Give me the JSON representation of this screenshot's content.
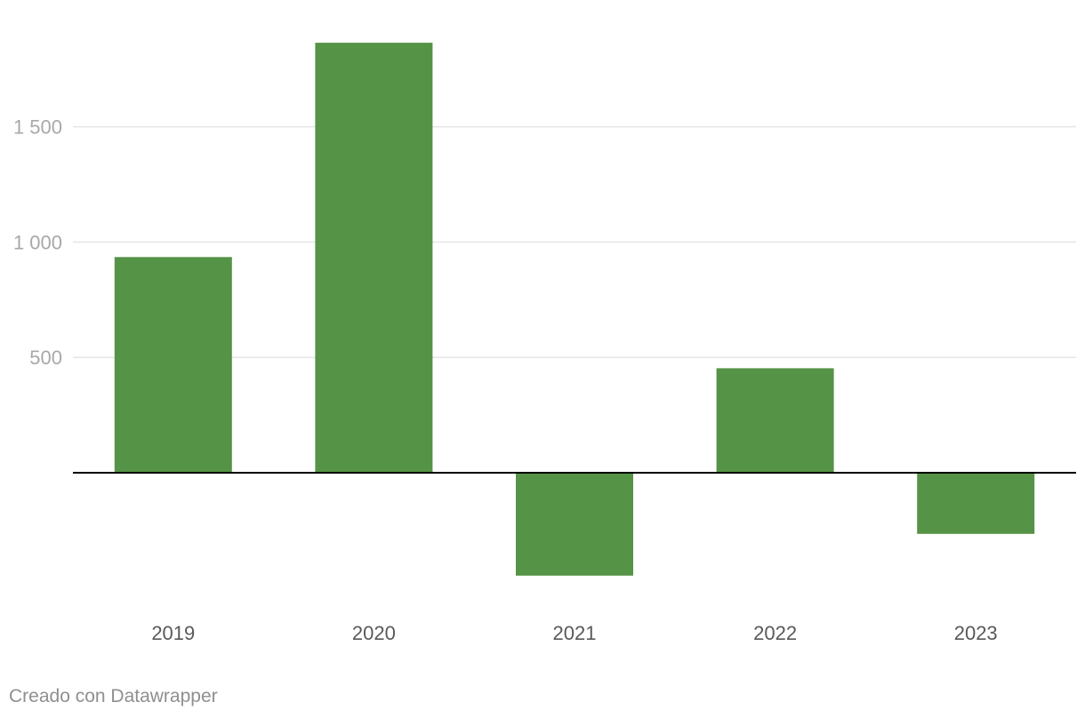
{
  "chart_data": {
    "type": "bar",
    "categories": [
      "2019",
      "2020",
      "2021",
      "2022",
      "2023"
    ],
    "values": [
      935,
      1864,
      -446,
      453,
      -265
    ],
    "ylim": [
      -580,
      1880
    ],
    "yticks": [
      500,
      1000,
      1500
    ],
    "ytick_labels": [
      "500",
      "1 000",
      "1 500"
    ],
    "grid": true,
    "legend": "none",
    "colors": {
      "bar": "#559346",
      "grid": "#e5e5e5",
      "baseline": "#000000",
      "tick_text": "#a8a8a8",
      "category_text": "#595959"
    }
  },
  "footer": {
    "credit": "Creado con Datawrapper"
  }
}
